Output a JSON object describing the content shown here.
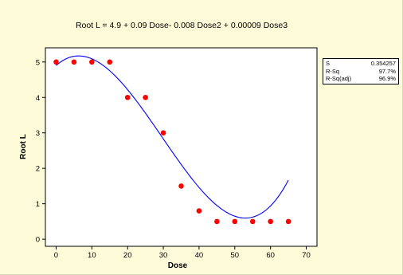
{
  "chart_data": {
    "type": "scatter",
    "title": "Root L =  4.9 + 0.09 Dose- 0.008 Dose2 + 0.00009 Dose3",
    "xlabel": "Dose",
    "ylabel": "Root L",
    "xlim": [
      -3,
      73
    ],
    "ylim": [
      -0.2,
      5.4
    ],
    "xticks": [
      0,
      10,
      20,
      30,
      40,
      50,
      60,
      70
    ],
    "yticks": [
      0,
      1,
      2,
      3,
      4,
      5
    ],
    "series": [
      {
        "kind": "points",
        "color": "#ff0000",
        "x": [
          0,
          5,
          10,
          15,
          20,
          25,
          30,
          35,
          40,
          45,
          50,
          55,
          60,
          65
        ],
        "y": [
          5,
          5,
          5,
          5,
          4,
          4,
          3,
          1.5,
          0.8,
          0.5,
          0.5,
          0.5,
          0.5,
          0.5
        ]
      },
      {
        "kind": "fit",
        "color": "#0000ff",
        "coefficients": [
          4.9,
          0.09,
          -0.008,
          9e-05
        ],
        "x_range": [
          0,
          65
        ]
      }
    ],
    "stats": [
      {
        "label": "S",
        "value": "0.354257"
      },
      {
        "label": "R-Sq",
        "value": "97.7%"
      },
      {
        "label": "R-Sq(adj)",
        "value": "96.9%"
      }
    ],
    "grid": false,
    "stats_box_position": "right"
  }
}
